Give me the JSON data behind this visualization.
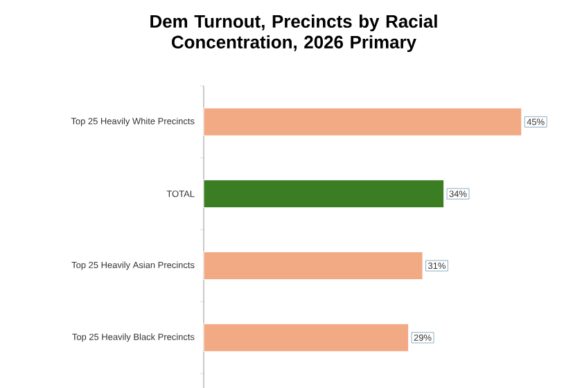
{
  "chart_data": {
    "type": "bar",
    "orientation": "horizontal",
    "title": "Dem Turnout, Precincts by Racial Concentration, 2026 Primary",
    "categories": [
      "Top 25 Heavily White Precincts",
      "TOTAL",
      "Top 25 Heavily Asian Precincts",
      "Top 25 Heavily Black Precincts"
    ],
    "values": [
      45,
      34,
      31,
      29
    ],
    "colors": [
      "#f2aa84",
      "#3b7d23",
      "#f2aa84",
      "#f2aa84"
    ],
    "value_labels": [
      "45%",
      "34%",
      "31%",
      "29%"
    ]
  }
}
